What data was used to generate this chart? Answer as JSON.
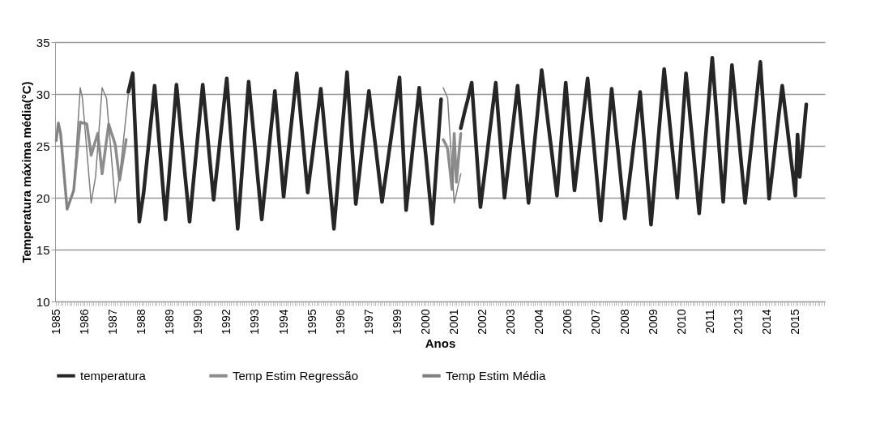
{
  "chart_data": {
    "type": "line",
    "xlabel": "Anos",
    "ylabel": "Temperatura máxima média(°C)",
    "categories": [
      "1985",
      null,
      null,
      null,
      null,
      null,
      null,
      null,
      null,
      null,
      null,
      null,
      null,
      "1986",
      null,
      null,
      null,
      null,
      null,
      null,
      null,
      null,
      null,
      null,
      null,
      null,
      "1987",
      null,
      null,
      null,
      null,
      null,
      null,
      null,
      null,
      null,
      null,
      null,
      null,
      "1988",
      null,
      null,
      null,
      null,
      null,
      null,
      null,
      null,
      null,
      null,
      null,
      null,
      "1989",
      null,
      null,
      null,
      null,
      null,
      null,
      null,
      null,
      null,
      null,
      null,
      null,
      "1990",
      null,
      null,
      null,
      null,
      null,
      null,
      null,
      null,
      null,
      null,
      null,
      null,
      "1992",
      null,
      null,
      null,
      null,
      null,
      null,
      null,
      null,
      null,
      null,
      null,
      null,
      "1993",
      null,
      null,
      null,
      null,
      null,
      null,
      null,
      null,
      null,
      null,
      null,
      null,
      "1994",
      null,
      null,
      null,
      null,
      null,
      null,
      null,
      null,
      null,
      null,
      null,
      null,
      "1995",
      null,
      null,
      null,
      null,
      null,
      null,
      null,
      null,
      null,
      null,
      null,
      null,
      "1996",
      null,
      null,
      null,
      null,
      null,
      null,
      null,
      null,
      null,
      null,
      null,
      null,
      "1997",
      null,
      null,
      null,
      null,
      null,
      null,
      null,
      null,
      null,
      null,
      null,
      null,
      "1999",
      null,
      null,
      null,
      null,
      null,
      null,
      null,
      null,
      null,
      null,
      null,
      null,
      "2000",
      null,
      null,
      null,
      null,
      null,
      null,
      null,
      null,
      null,
      null,
      null,
      null,
      "2001",
      null,
      null,
      null,
      null,
      null,
      null,
      null,
      null,
      null,
      null,
      null,
      null,
      "2002",
      null,
      null,
      null,
      null,
      null,
      null,
      null,
      null,
      null,
      null,
      null,
      null,
      "2003",
      null,
      null,
      null,
      null,
      null,
      null,
      null,
      null,
      null,
      null,
      null,
      null,
      "2004",
      null,
      null,
      null,
      null,
      null,
      null,
      null,
      null,
      null,
      null,
      null,
      null,
      "2006",
      null,
      null,
      null,
      null,
      null,
      null,
      null,
      null,
      null,
      null,
      null,
      null,
      "2007",
      null,
      null,
      null,
      null,
      null,
      null,
      null,
      null,
      null,
      null,
      null,
      null,
      "2008",
      null,
      null,
      null,
      null,
      null,
      null,
      null,
      null,
      null,
      null,
      null,
      null,
      "2009",
      null,
      null,
      null,
      null,
      null,
      null,
      null,
      null,
      null,
      null,
      null,
      null,
      "2010",
      null,
      null,
      null,
      null,
      null,
      null,
      null,
      null,
      null,
      null,
      null,
      null,
      "2011",
      null,
      null,
      null,
      null,
      null,
      null,
      null,
      null,
      null,
      null,
      null,
      null,
      "2013",
      null,
      null,
      null,
      null,
      null,
      null,
      null,
      null,
      null,
      null,
      null,
      null,
      "2014",
      null,
      null,
      null,
      null,
      null,
      null,
      null,
      null,
      null,
      null,
      null,
      null,
      "2015",
      null,
      null,
      null,
      null,
      null,
      null,
      null,
      null,
      null,
      null,
      null,
      null,
      null
    ],
    "ylim": [
      10,
      35
    ],
    "yticks": [
      10,
      15,
      20,
      25,
      30,
      35
    ],
    "grid": "y",
    "legend": "bottom",
    "marker": "none",
    "line_style": "solid",
    "series": [
      {
        "name": "temperatura",
        "color": "#262626",
        "values": [
          null,
          null,
          null,
          null,
          null,
          null,
          null,
          null,
          null,
          null,
          null,
          null,
          null,
          null,
          null,
          null,
          null,
          null,
          null,
          null,
          null,
          null,
          null,
          null,
          null,
          null,
          null,
          null,
          null,
          null,
          null,
          null,
          null,
          30.2,
          31.1,
          32.0,
          27.2,
          22.5,
          17.7,
          19.1,
          20.5,
          22.6,
          24.6,
          26.7,
          28.7,
          30.8,
          28.2,
          25.6,
          23.1,
          20.5,
          17.9,
          20.5,
          23.1,
          25.7,
          28.3,
          30.9,
          28.7,
          26.4,
          24.2,
          22.0,
          19.9,
          17.7,
          19.9,
          22.1,
          24.3,
          26.5,
          28.7,
          30.9,
          28.7,
          26.5,
          24.2,
          22.0,
          19.8,
          21.8,
          23.7,
          25.7,
          27.6,
          29.6,
          31.5,
          28.6,
          25.7,
          22.8,
          19.9,
          17.0,
          19.8,
          22.7,
          25.5,
          28.4,
          31.2,
          29.0,
          26.8,
          24.6,
          22.3,
          20.1,
          17.9,
          20.0,
          22.0,
          24.1,
          26.2,
          28.2,
          30.3,
          27.8,
          25.2,
          22.7,
          20.1,
          22.1,
          24.1,
          26.1,
          28.0,
          30.0,
          32.0,
          29.7,
          27.4,
          25.1,
          22.8,
          20.5,
          22.2,
          23.8,
          25.5,
          27.2,
          28.8,
          30.5,
          28.3,
          26.0,
          23.8,
          21.5,
          19.3,
          17.0,
          19.5,
          22.0,
          24.6,
          27.1,
          29.6,
          32.1,
          28.9,
          25.7,
          22.6,
          19.4,
          21.2,
          23.0,
          24.9,
          26.7,
          28.5,
          30.3,
          28.5,
          26.7,
          25.0,
          23.2,
          21.4,
          19.6,
          21.1,
          22.6,
          24.1,
          25.6,
          27.1,
          28.6,
          30.1,
          31.6,
          27.3,
          23.1,
          18.8,
          20.8,
          22.7,
          24.7,
          26.7,
          28.6,
          30.6,
          28.4,
          26.2,
          24.1,
          21.9,
          19.7,
          17.5,
          20.5,
          23.5,
          26.5,
          29.5,
          null,
          null,
          null,
          null,
          null,
          null,
          null,
          null,
          26.7,
          27.6,
          28.5,
          29.3,
          30.2,
          31.1,
          28.1,
          25.1,
          22.1,
          19.1,
          20.8,
          22.5,
          24.2,
          26.0,
          27.7,
          29.4,
          31.1,
          28.3,
          25.6,
          22.8,
          20.0,
          21.8,
          23.6,
          25.4,
          27.2,
          29.0,
          30.8,
          28.5,
          26.3,
          24.0,
          21.8,
          19.5,
          21.6,
          23.8,
          25.9,
          28.0,
          30.2,
          32.3,
          30.6,
          28.8,
          27.1,
          25.4,
          23.7,
          21.9,
          20.2,
          22.9,
          25.7,
          28.4,
          31.1,
          28.5,
          25.9,
          23.3,
          20.7,
          22.5,
          24.3,
          26.1,
          27.9,
          29.7,
          31.5,
          29.2,
          26.9,
          24.7,
          22.4,
          20.1,
          17.8,
          20.3,
          22.9,
          25.4,
          28.0,
          30.5,
          28.4,
          26.3,
          24.3,
          22.2,
          20.1,
          18.0,
          19.7,
          21.5,
          23.2,
          25.0,
          26.7,
          28.4,
          30.2,
          27.6,
          25.1,
          22.5,
          20.0,
          17.4,
          19.9,
          22.4,
          24.9,
          27.4,
          29.9,
          32.4,
          30.3,
          28.3,
          26.2,
          24.1,
          22.1,
          20.0,
          23.0,
          26.0,
          29.0,
          32.0,
          29.8,
          27.5,
          25.3,
          23.0,
          20.8,
          18.5,
          21.0,
          23.5,
          26.0,
          28.5,
          31.0,
          33.5,
          30.7,
          28.0,
          25.2,
          22.4,
          19.6,
          22.9,
          26.2,
          29.5,
          32.8,
          30.6,
          28.4,
          26.2,
          23.9,
          21.7,
          19.5,
          21.4,
          23.4,
          25.3,
          27.3,
          29.2,
          31.2,
          33.1,
          29.8,
          26.5,
          23.2,
          19.9,
          21.7,
          23.5,
          25.4,
          27.2,
          29.0,
          30.8,
          29.0,
          27.3,
          25.5,
          23.7,
          22.0,
          20.2,
          26.1,
          22.0,
          24.3,
          26.7,
          29.0,
          null,
          null,
          null,
          null,
          null,
          null,
          null,
          null
        ]
      },
      {
        "name": "Temp Estim Regressão",
        "color": "#8c8c8c",
        "values": [
          25.5,
          27.2,
          26.2,
          23.8,
          21.3,
          18.9,
          19.5,
          20.1,
          20.7,
          23.0,
          25.2,
          27.3,
          27.2,
          27.2,
          27.1,
          25.6,
          24.1,
          24.8,
          25.5,
          26.2,
          24.3,
          22.3,
          23.9,
          25.5,
          27.1,
          26.4,
          25.8,
          25.1,
          23.4,
          21.7,
          23.0,
          24.3,
          25.6,
          null,
          null,
          null,
          null,
          null,
          null,
          null,
          null,
          null,
          null,
          null,
          null,
          null,
          null,
          null,
          null,
          null,
          null,
          null,
          null,
          null,
          null,
          null,
          null,
          null,
          null,
          null,
          null,
          null,
          null,
          null,
          null,
          null,
          null,
          null,
          null,
          null,
          null,
          null,
          null,
          null,
          null,
          null,
          null,
          null,
          null,
          null,
          null,
          null,
          null,
          null,
          null,
          null,
          null,
          null,
          null,
          null,
          null,
          null,
          null,
          null,
          null,
          null,
          null,
          null,
          null,
          null,
          null,
          null,
          null,
          null,
          null,
          null,
          null,
          null,
          null,
          null,
          null,
          null,
          null,
          null,
          null,
          null,
          null,
          null,
          null,
          null,
          null,
          null,
          null,
          null,
          null,
          null,
          null,
          null,
          null,
          null,
          null,
          null,
          null,
          null,
          null,
          null,
          null,
          null,
          null,
          null,
          null,
          null,
          null,
          null,
          null,
          null,
          null,
          null,
          null,
          null,
          null,
          null,
          null,
          null,
          null,
          null,
          null,
          null,
          null,
          null,
          null,
          null,
          null,
          null,
          null,
          null,
          null,
          null,
          null,
          null,
          null,
          null,
          null,
          null,
          null,
          null,
          null,
          25.6,
          25.2,
          24.7,
          22.8,
          20.8,
          26.2,
          21.5,
          23.9,
          26.2,
          null,
          null,
          null,
          null,
          null,
          null,
          null,
          null,
          null,
          null,
          null,
          null,
          null,
          null,
          null,
          null,
          null,
          null,
          null,
          null,
          null,
          null,
          null,
          null,
          null,
          null,
          null,
          null,
          null,
          null,
          null,
          null,
          null,
          null,
          null,
          null,
          null,
          null,
          null,
          null,
          null,
          null,
          null,
          null,
          null,
          null,
          null,
          null,
          null,
          null,
          null,
          null,
          null,
          null,
          null,
          null,
          null,
          null,
          null,
          null,
          null,
          null,
          null,
          null,
          null,
          null,
          null,
          null,
          null,
          null,
          null,
          null,
          null,
          null,
          null,
          null,
          null,
          null,
          null,
          null,
          null,
          null,
          null,
          null,
          null,
          null,
          null,
          null,
          null,
          null,
          null,
          null,
          null,
          null,
          null,
          null,
          null,
          null,
          null,
          null,
          null,
          null,
          null,
          null,
          null,
          null,
          null,
          null,
          null,
          null,
          null,
          null,
          null,
          null,
          null,
          null,
          null,
          null,
          null,
          null,
          null,
          null,
          null,
          null,
          null,
          null,
          null,
          null,
          null,
          null,
          null,
          null,
          null,
          null,
          null,
          null,
          null,
          null,
          null,
          null,
          null,
          null,
          null,
          null,
          null,
          null,
          null,
          null,
          null,
          null,
          null,
          null,
          null,
          null,
          null,
          null,
          null,
          null,
          null,
          null,
          null,
          null,
          null,
          null,
          null,
          null
        ]
      },
      {
        "name": "Temp Estim Média",
        "color": "#7f7f7f",
        "values": [
          25.5,
          27.2,
          26.2,
          23.8,
          21.3,
          18.9,
          19.5,
          20.1,
          20.7,
          24.0,
          27.3,
          30.6,
          29.6,
          27.1,
          24.6,
          22.0,
          19.5,
          20.8,
          22.0,
          24.9,
          27.7,
          30.6,
          30.1,
          29.6,
          27.1,
          24.6,
          22.0,
          19.5,
          20.8,
          22.0,
          24.0,
          26.0,
          28.0,
          30.0,
          null,
          null,
          null,
          null,
          null,
          null,
          null,
          null,
          null,
          null,
          null,
          null,
          null,
          null,
          null,
          null,
          null,
          null,
          null,
          null,
          null,
          null,
          null,
          null,
          null,
          null,
          null,
          null,
          null,
          null,
          null,
          null,
          null,
          null,
          null,
          null,
          null,
          null,
          null,
          null,
          null,
          null,
          null,
          null,
          null,
          null,
          null,
          null,
          null,
          null,
          null,
          null,
          null,
          null,
          null,
          null,
          null,
          null,
          null,
          null,
          null,
          null,
          null,
          null,
          null,
          null,
          null,
          null,
          null,
          null,
          null,
          null,
          null,
          null,
          null,
          null,
          null,
          null,
          null,
          null,
          null,
          null,
          null,
          null,
          null,
          null,
          null,
          null,
          null,
          null,
          null,
          null,
          null,
          null,
          null,
          null,
          null,
          null,
          null,
          null,
          null,
          null,
          null,
          null,
          null,
          null,
          null,
          null,
          null,
          null,
          null,
          null,
          null,
          null,
          null,
          null,
          null,
          null,
          null,
          null,
          null,
          null,
          null,
          null,
          null,
          null,
          null,
          null,
          null,
          null,
          null,
          null,
          null,
          null,
          null,
          null,
          null,
          null,
          null,
          null,
          null,
          null,
          null,
          30.6,
          30.1,
          29.6,
          26.2,
          22.9,
          19.5,
          20.4,
          21.4,
          22.3,
          null,
          null,
          null,
          null,
          null,
          null,
          null,
          null,
          null,
          null,
          null,
          null,
          null,
          null,
          null,
          null,
          null,
          null,
          null,
          null,
          null,
          null,
          null,
          null,
          null,
          null,
          null,
          null,
          null,
          null,
          null,
          null,
          null,
          null,
          null,
          null,
          null,
          null,
          null,
          null,
          null,
          null,
          null,
          null,
          null,
          null,
          null,
          null,
          null,
          null,
          null,
          null,
          null,
          null,
          null,
          null,
          null,
          null,
          null,
          null,
          null,
          null,
          null,
          null,
          null,
          null,
          null,
          null,
          null,
          null,
          null,
          null,
          null,
          null,
          null,
          null,
          null,
          null,
          null,
          null,
          null,
          null,
          null,
          null,
          null,
          null,
          null,
          null,
          null,
          null,
          null,
          null,
          null,
          null,
          null,
          null,
          null,
          null,
          null,
          null,
          null,
          null,
          null,
          null,
          null,
          null,
          null,
          null,
          null,
          null,
          null,
          null,
          null,
          null,
          null,
          null,
          null,
          null,
          null,
          null,
          null,
          null,
          null,
          null,
          null,
          null,
          null,
          null,
          null,
          null,
          null,
          null,
          null,
          null,
          null,
          null,
          null,
          null,
          null,
          null,
          null,
          null,
          null,
          null,
          null,
          null,
          null,
          null,
          null,
          null,
          null,
          null,
          null,
          null,
          null,
          null,
          null,
          null,
          null,
          null,
          null,
          null,
          null,
          null,
          null,
          null
        ]
      }
    ]
  }
}
